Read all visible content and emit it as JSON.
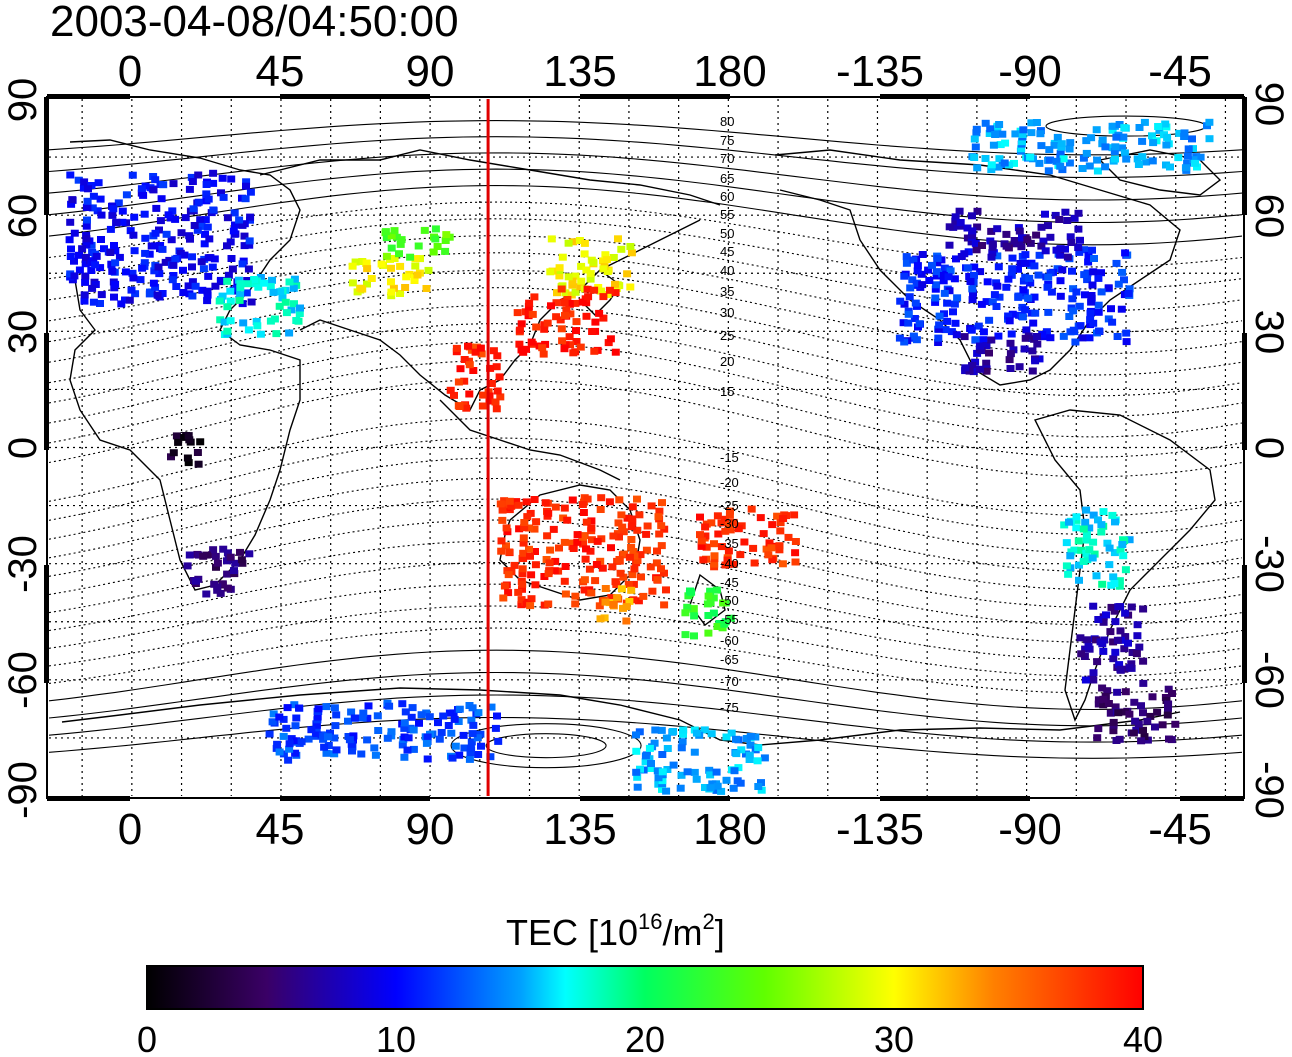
{
  "title": "2003-04-08/04:50:00",
  "top_lon_labels": [
    "0",
    "45",
    "90",
    "135",
    "180",
    "-135",
    "-90",
    "-45"
  ],
  "bottom_lon_labels": [
    "0",
    "45",
    "90",
    "135",
    "180",
    "-135",
    "-90",
    "-45"
  ],
  "left_lat_labels": [
    "90",
    "60",
    "30",
    "0",
    "-30",
    "-60",
    "-90"
  ],
  "right_lat_labels": [
    "90",
    "60",
    "30",
    "0",
    "-30",
    "-60",
    "-90"
  ],
  "magnetic_lat_labels": [
    "80",
    "75",
    "70",
    "65",
    "60",
    "55",
    "50",
    "45",
    "40",
    "35",
    "30",
    "25",
    "20",
    "15",
    "-15",
    "-20",
    "-25",
    "-30",
    "-35",
    "-40",
    "-45",
    "-50",
    "-55",
    "-60",
    "-65",
    "-70",
    "-75"
  ],
  "colorbar": {
    "label_main": "TEC  [10",
    "label_sup1": "16",
    "label_mid": "/m",
    "label_sup2": "2",
    "label_end": "]",
    "ticks": [
      "0",
      "10",
      "20",
      "30",
      "40"
    ],
    "min": 0,
    "max": 40
  },
  "colors": {
    "noon_line": "#e00000",
    "frame": "#000000"
  },
  "chart_data": {
    "type": "heatmap",
    "title": "2003-04-08/04:50:00",
    "xlabel": "",
    "ylabel": "",
    "xlim": [
      -25,
      335
    ],
    "ylim": [
      -90,
      90
    ],
    "value_range": [
      0,
      40
    ],
    "noon_longitude": 107.5,
    "regions": [
      {
        "lon": [
          -20,
          35
        ],
        "lat": [
          38,
          72
        ],
        "tec": 10
      },
      {
        "lon": [
          25,
          50
        ],
        "lat": [
          30,
          45
        ],
        "tec": 17
      },
      {
        "lon": [
          65,
          90
        ],
        "lat": [
          40,
          50
        ],
        "tec": 30
      },
      {
        "lon": [
          75,
          95
        ],
        "lat": [
          50,
          58
        ],
        "tec": 24
      },
      {
        "lon": [
          125,
          150
        ],
        "lat": [
          40,
          55
        ],
        "tec": 30
      },
      {
        "lon": [
          115,
          145
        ],
        "lat": [
          25,
          42
        ],
        "tec": 39
      },
      {
        "lon": [
          95,
          110
        ],
        "lat": [
          10,
          28
        ],
        "tec": 38
      },
      {
        "lon": [
          110,
          160
        ],
        "lat": [
          -40,
          -12
        ],
        "tec": 38
      },
      {
        "lon": [
          140,
          150
        ],
        "lat": [
          -45,
          -35
        ],
        "tec": 33
      },
      {
        "lon": [
          165,
          180
        ],
        "lat": [
          -48,
          -35
        ],
        "tec": 22
      },
      {
        "lon": [
          170,
          200
        ],
        "lat": [
          -30,
          -15
        ],
        "tec": 38
      },
      {
        "lon": [
          15,
          35
        ],
        "lat": [
          -38,
          -25
        ],
        "tec": 5
      },
      {
        "lon": [
          230,
          300
        ],
        "lat": [
          28,
          52
        ],
        "tec": 11
      },
      {
        "lon": [
          245,
          285
        ],
        "lat": [
          50,
          62
        ],
        "tec": 7
      },
      {
        "lon": [
          250,
          275
        ],
        "lat": [
          20,
          30
        ],
        "tec": 7
      },
      {
        "lon": [
          280,
          300
        ],
        "lat": [
          -35,
          -15
        ],
        "tec": 17
      },
      {
        "lon": [
          285,
          305
        ],
        "lat": [
          -60,
          -40
        ],
        "tec": 7
      },
      {
        "lon": [
          290,
          315
        ],
        "lat": [
          -75,
          -60
        ],
        "tec": 5
      },
      {
        "lon": [
          40,
          110
        ],
        "lat": [
          -80,
          -65
        ],
        "tec": 12
      },
      {
        "lon": [
          150,
          190
        ],
        "lat": [
          -88,
          -72
        ],
        "tec": 15
      },
      {
        "lon": [
          250,
          325
        ],
        "lat": [
          72,
          85
        ],
        "tec": 15
      },
      {
        "lon": [
          10,
          20
        ],
        "lat": [
          -5,
          5
        ],
        "tec": 2
      }
    ]
  }
}
